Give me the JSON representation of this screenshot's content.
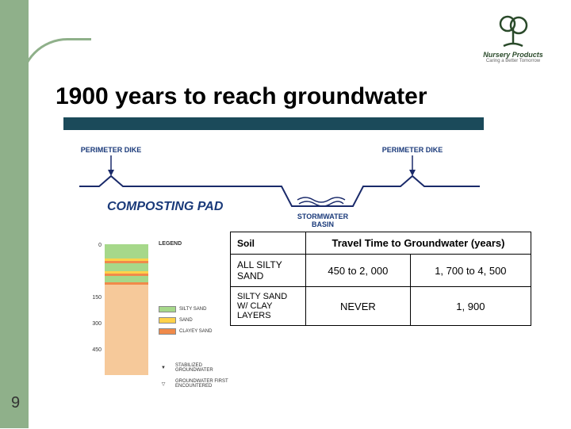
{
  "theme": {
    "accent": "#8fb08a",
    "accent_dark": "#2a4a2a",
    "underline": "#1b4a5a"
  },
  "logo": {
    "line1": "Nursery Products",
    "line2": "Caring a Better Tomorrow"
  },
  "title": "1900 years to reach groundwater",
  "diagram": {
    "left_dike": "PERIMETER DIKE",
    "right_dike": "PERIMETER DIKE",
    "pad": "COMPOSTING PAD",
    "basin": "STORMWATER BASIN",
    "line_color": "#1a2a6a",
    "text_color": "#1a3a7a"
  },
  "table": {
    "h1": "Soil",
    "h2": "Travel Time to Groundwater (years)",
    "rows": [
      {
        "soil": "ALL SILTY SAND",
        "v1": "450 to 2, 000",
        "v2": "1, 700 to 4, 500"
      },
      {
        "soil": "SILTY SAND W/ CLAY LAYERS",
        "v1": "NEVER",
        "v2": "1, 900"
      }
    ]
  },
  "strat": {
    "depths": [
      "0",
      "",
      "150",
      "300",
      "450"
    ],
    "layers": [
      {
        "h": 18,
        "color": "#a6d88a"
      },
      {
        "h": 3,
        "color": "#ffd24a"
      },
      {
        "h": 3,
        "color": "#f08a4a"
      },
      {
        "h": 10,
        "color": "#a6d88a"
      },
      {
        "h": 3,
        "color": "#ffd24a"
      },
      {
        "h": 3,
        "color": "#f08a4a"
      },
      {
        "h": 8,
        "color": "#a6d88a"
      },
      {
        "h": 3,
        "color": "#f08a4a"
      },
      {
        "h": 114,
        "color": "#f6c99a"
      }
    ],
    "legend_title": "LEGEND",
    "stabilized": "STABILIZED GROUNDWATER",
    "first": "GROUNDWATER FIRST ENCOUNTERED",
    "items": [
      {
        "label": "SILTY SAND",
        "color": "#a6d88a"
      },
      {
        "label": "SAND",
        "color": "#ffd24a"
      },
      {
        "label": "CLAYEY SAND",
        "color": "#f08a4a"
      }
    ]
  },
  "page": "9"
}
